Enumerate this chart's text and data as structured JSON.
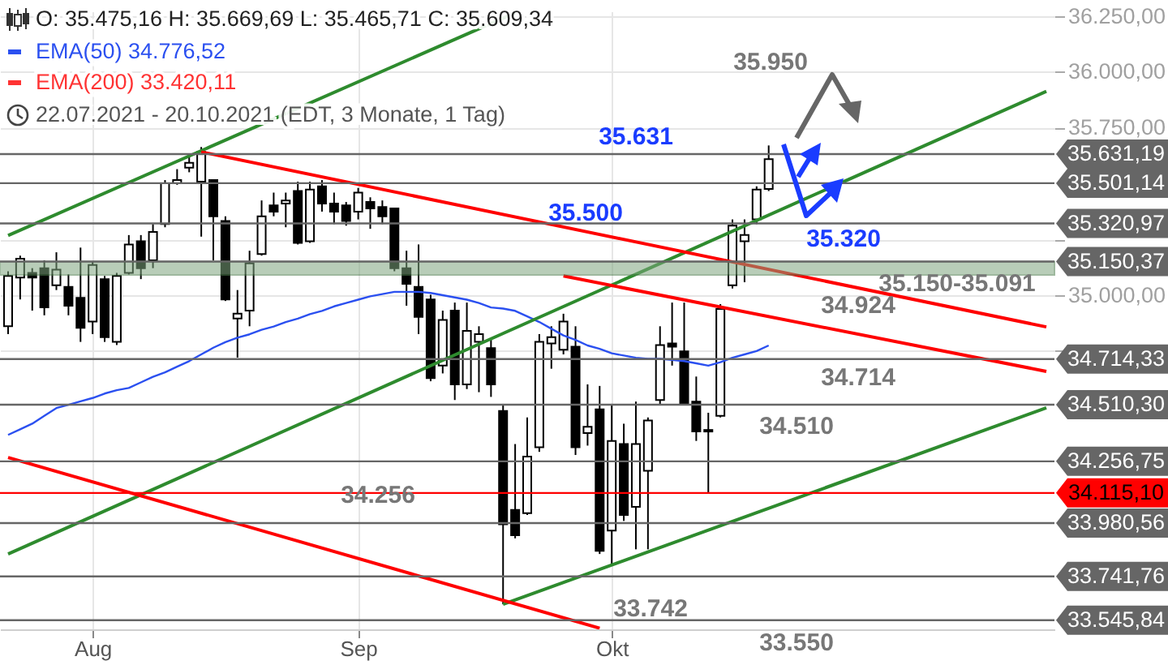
{
  "chart_data": {
    "type": "candlestick",
    "categories": [
      null,
      null,
      null,
      null,
      null,
      null,
      null,
      "Aug",
      null,
      null,
      null,
      null,
      null,
      null,
      null,
      null,
      null,
      null,
      null,
      null,
      null,
      null,
      null,
      null,
      null,
      null,
      null,
      null,
      null,
      "Sep",
      null,
      null,
      null,
      null,
      null,
      null,
      null,
      null,
      null,
      null,
      null,
      null,
      null,
      null,
      null,
      null,
      null,
      null,
      null,
      null,
      "Okt",
      null,
      null,
      null,
      null,
      null,
      null,
      null,
      null,
      null,
      null,
      null,
      null,
      null,
      null,
      null,
      null,
      null,
      null,
      null,
      null,
      null,
      null,
      null,
      null,
      null,
      null,
      null,
      null,
      null,
      null,
      null,
      null,
      null,
      null,
      null,
      null
    ],
    "ohlc": [
      [
        34861,
        35107,
        34826,
        35086
      ],
      [
        35079,
        35177,
        34981,
        35163
      ],
      [
        35100,
        35121,
        34931,
        35079
      ],
      [
        35121,
        35156,
        34910,
        34946
      ],
      [
        35044,
        35192,
        35023,
        35114
      ],
      [
        35037,
        35093,
        34910,
        34953
      ],
      [
        34988,
        35213,
        34791,
        34854
      ],
      [
        34882,
        35149,
        34826,
        35135
      ],
      [
        35072,
        35086,
        34791,
        34812
      ],
      [
        34791,
        35100,
        34777,
        35086
      ],
      [
        35100,
        35269,
        35093,
        35227
      ],
      [
        35241,
        35269,
        35072,
        35121
      ],
      [
        35156,
        35318,
        35121,
        35283
      ],
      [
        35318,
        35515,
        35304,
        35501
      ],
      [
        35501,
        35564,
        35494,
        35515
      ],
      [
        35571,
        35634,
        35550,
        35592
      ],
      [
        35508,
        35663,
        35262,
        35641
      ],
      [
        35515,
        35515,
        35156,
        35353
      ],
      [
        35332,
        35353,
        34974,
        34981
      ],
      [
        34896,
        35023,
        34721,
        34917
      ],
      [
        34931,
        35199,
        34861,
        35142
      ],
      [
        35184,
        35424,
        35177,
        35353
      ],
      [
        35402,
        35459,
        35353,
        35374
      ],
      [
        35410,
        35459,
        35304,
        35424
      ],
      [
        35466,
        35508,
        35227,
        35234
      ],
      [
        35241,
        35508,
        35234,
        35473
      ],
      [
        35487,
        35515,
        35374,
        35410
      ],
      [
        35410,
        35459,
        35318,
        35374
      ],
      [
        35402,
        35417,
        35311,
        35332
      ],
      [
        35374,
        35480,
        35339,
        35459
      ],
      [
        35417,
        35438,
        35297,
        35388
      ],
      [
        35395,
        35424,
        35318,
        35353
      ],
      [
        35388,
        35388,
        35107,
        35121
      ],
      [
        35121,
        35199,
        34953,
        35051
      ],
      [
        35037,
        35227,
        34826,
        34903
      ],
      [
        34981,
        35002,
        34615,
        34629
      ],
      [
        34685,
        34931,
        34650,
        34889
      ],
      [
        34931,
        34967,
        34531,
        34601
      ],
      [
        34601,
        34967,
        34580,
        34840
      ],
      [
        34791,
        34861,
        34566,
        34826
      ],
      [
        34763,
        34805,
        34545,
        34601
      ],
      [
        34482,
        34510,
        33617,
        33975
      ],
      [
        34039,
        34334,
        33912,
        33926
      ],
      [
        34025,
        34453,
        34017,
        34278
      ],
      [
        34320,
        34826,
        34299,
        34791
      ],
      [
        34784,
        34861,
        34671,
        34812
      ],
      [
        34756,
        34917,
        34735,
        34882
      ],
      [
        34770,
        34861,
        34285,
        34320
      ],
      [
        34383,
        34601,
        34327,
        34411
      ],
      [
        34489,
        34594,
        33842,
        33856
      ],
      [
        33947,
        34510,
        33793,
        34348
      ],
      [
        34334,
        34425,
        33990,
        34017
      ],
      [
        34053,
        34524,
        33863,
        34334
      ],
      [
        34214,
        34453,
        33863,
        34439
      ],
      [
        34531,
        34861,
        34510,
        34777
      ],
      [
        34784,
        34967,
        34685,
        34770
      ],
      [
        34749,
        34967,
        34510,
        34517
      ],
      [
        34524,
        34636,
        34348,
        34390
      ],
      [
        34397,
        34474,
        34115,
        34390
      ],
      [
        34460,
        34960,
        34453,
        34938
      ],
      [
        35044,
        35339,
        35030,
        35311
      ],
      [
        35241,
        35339,
        35058,
        35269
      ],
      [
        35339,
        35487,
        35318,
        35473
      ],
      [
        35475,
        35670,
        35466,
        35609
      ],
      null,
      null,
      null,
      null,
      null,
      null,
      null,
      null,
      null,
      null,
      null,
      null,
      null,
      null,
      null,
      null,
      null,
      null,
      null,
      null,
      null,
      null,
      null
    ],
    "series": [
      {
        "type": "line",
        "color": "#2b50f0",
        "values": [
          34375,
          34400,
          34425,
          34460,
          34495,
          34510,
          34525,
          34540,
          34560,
          34575,
          34585,
          34610,
          34635,
          34655,
          34680,
          34705,
          34735,
          34765,
          34790,
          34810,
          34825,
          34845,
          34860,
          34880,
          34895,
          34915,
          34930,
          34950,
          34965,
          34980,
          34995,
          35005,
          35015,
          35015,
          35015,
          35010,
          35000,
          34990,
          34980,
          34965,
          34945,
          34940,
          34930,
          34905,
          34880,
          34850,
          34820,
          34800,
          34775,
          34760,
          34740,
          34730,
          34720,
          34715,
          34715,
          34710,
          34705,
          34695,
          34685,
          34700,
          34720,
          34735,
          34750,
          34775,
          null,
          null,
          null,
          null,
          null,
          null,
          null,
          null,
          null,
          null,
          null,
          null,
          null,
          null,
          null,
          null,
          null,
          null,
          null,
          null,
          null,
          null,
          null
        ]
      },
      {
        "type": "line",
        "color": "#2e8b2e",
        "values": [
          35267,
          null,
          null,
          null,
          null,
          null,
          null,
          null,
          null,
          null,
          null,
          null,
          null,
          null,
          null,
          null,
          null,
          null,
          null,
          null,
          null,
          null,
          null,
          null,
          null,
          null,
          null,
          null,
          null,
          null,
          null,
          null,
          null,
          null,
          null,
          null,
          null,
          null,
          null,
          null,
          null,
          null,
          36263,
          null,
          null,
          null,
          null,
          null,
          null,
          null,
          null,
          null,
          null,
          null,
          null,
          null,
          null,
          null,
          null,
          null,
          null,
          null,
          null,
          null,
          null,
          null,
          null,
          null,
          null,
          null,
          null,
          null,
          null,
          null,
          null,
          null,
          null,
          null,
          null,
          null,
          null,
          null,
          null,
          null,
          null,
          null,
          null
        ]
      },
      {
        "type": "line",
        "color": "#2e8b2e",
        "values": [
          33842,
          null,
          null,
          null,
          null,
          null,
          null,
          null,
          null,
          null,
          null,
          null,
          null,
          null,
          null,
          null,
          null,
          null,
          null,
          null,
          null,
          null,
          null,
          null,
          null,
          null,
          null,
          null,
          null,
          null,
          null,
          null,
          null,
          null,
          null,
          null,
          null,
          null,
          null,
          null,
          null,
          null,
          null,
          null,
          null,
          null,
          null,
          null,
          null,
          null,
          null,
          null,
          null,
          null,
          null,
          null,
          null,
          null,
          null,
          null,
          null,
          null,
          null,
          null,
          null,
          null,
          null,
          null,
          null,
          null,
          null,
          null,
          null,
          null,
          null,
          null,
          null,
          null,
          null,
          null,
          null,
          null,
          null,
          null,
          null,
          null,
          35912
        ]
      },
      {
        "type": "line",
        "color": "#2e8b2e",
        "values": [
          null,
          null,
          null,
          null,
          null,
          null,
          null,
          null,
          null,
          null,
          null,
          null,
          null,
          null,
          null,
          null,
          null,
          null,
          null,
          null,
          null,
          null,
          null,
          null,
          null,
          null,
          null,
          null,
          null,
          null,
          null,
          null,
          null,
          null,
          null,
          null,
          null,
          null,
          null,
          null,
          null,
          33617,
          null,
          null,
          null,
          null,
          null,
          null,
          null,
          null,
          null,
          null,
          null,
          null,
          null,
          null,
          null,
          null,
          null,
          null,
          null,
          null,
          null,
          null,
          null,
          null,
          null,
          null,
          null,
          null,
          null,
          null,
          null,
          null,
          null,
          null,
          null,
          null,
          null,
          null,
          null,
          null,
          null,
          null,
          null,
          null,
          34496
        ]
      },
      {
        "type": "line",
        "color": "#ff0000",
        "values": [
          null,
          null,
          null,
          null,
          null,
          null,
          null,
          null,
          null,
          null,
          null,
          null,
          null,
          null,
          null,
          null,
          35641,
          null,
          null,
          null,
          null,
          null,
          null,
          null,
          null,
          null,
          null,
          null,
          null,
          null,
          null,
          null,
          null,
          null,
          null,
          null,
          null,
          null,
          null,
          null,
          null,
          null,
          null,
          null,
          null,
          null,
          null,
          null,
          null,
          null,
          null,
          null,
          null,
          null,
          null,
          null,
          null,
          null,
          null,
          null,
          null,
          null,
          null,
          null,
          null,
          null,
          null,
          null,
          null,
          null,
          null,
          null,
          null,
          null,
          null,
          null,
          null,
          null,
          null,
          null,
          null,
          null,
          null,
          null,
          null,
          null,
          34858
        ]
      },
      {
        "type": "line",
        "color": "#ff0000",
        "values": [
          null,
          null,
          null,
          null,
          null,
          null,
          null,
          null,
          null,
          null,
          null,
          null,
          null,
          null,
          null,
          null,
          null,
          null,
          null,
          null,
          null,
          null,
          null,
          null,
          null,
          null,
          null,
          null,
          null,
          null,
          null,
          null,
          null,
          null,
          null,
          null,
          null,
          null,
          null,
          null,
          null,
          null,
          null,
          null,
          null,
          null,
          35086,
          null,
          null,
          null,
          null,
          null,
          null,
          null,
          null,
          null,
          null,
          null,
          null,
          null,
          null,
          null,
          null,
          null,
          null,
          null,
          null,
          null,
          null,
          null,
          null,
          null,
          null,
          null,
          null,
          null,
          null,
          null,
          null,
          null,
          null,
          null,
          null,
          null,
          null,
          null,
          34659
        ]
      },
      {
        "type": "line",
        "color": "#ff0000",
        "values": [
          34274,
          null,
          null,
          null,
          null,
          null,
          null,
          null,
          null,
          null,
          null,
          null,
          null,
          null,
          null,
          null,
          null,
          null,
          null,
          null,
          null,
          null,
          null,
          null,
          null,
          null,
          null,
          null,
          null,
          null,
          null,
          null,
          null,
          null,
          null,
          null,
          null,
          null,
          null,
          null,
          null,
          null,
          null,
          null,
          null,
          null,
          null,
          null,
          null,
          33510,
          null,
          null,
          null,
          null,
          null,
          null,
          null,
          null,
          null,
          null,
          null,
          null,
          null,
          null,
          null,
          null,
          null,
          null,
          null,
          null,
          null,
          null,
          null,
          null,
          null,
          null,
          null,
          null,
          null,
          null,
          null,
          null,
          null,
          null,
          null,
          null,
          null
        ]
      }
    ],
    "ylim": [
      33505,
      36270
    ],
    "yticks": [
      {
        "value": 34750,
        "label": null
      },
      {
        "value": 35000,
        "label": "35.000,00"
      },
      {
        "value": 35250,
        "label": null
      },
      {
        "value": 35750,
        "label": "35.750,00"
      },
      {
        "value": 36000,
        "label": "36.000,00"
      },
      {
        "value": 36250,
        "label": "36.250,00"
      }
    ],
    "grid": true,
    "bands": [
      {
        "axis": "y",
        "from": 35091,
        "to": 35150,
        "color": "#7fa67f"
      }
    ],
    "ref_lines": [
      {
        "axis": "y",
        "value": 35631.19,
        "label": "35.631,19",
        "color": "#666666"
      },
      {
        "axis": "y",
        "value": 35501.14,
        "label": "35.501,14",
        "color": "#666666"
      },
      {
        "axis": "y",
        "value": 35320.97,
        "label": "35.320,97",
        "color": "#666666"
      },
      {
        "axis": "y",
        "value": 35150.37,
        "label": "35.150,37",
        "color": "#666666"
      },
      {
        "axis": "y",
        "value": 34714.33,
        "label": "34.714,33",
        "color": "#666666"
      },
      {
        "axis": "y",
        "value": 34510.3,
        "label": "34.510,30",
        "color": "#666666"
      },
      {
        "axis": "y",
        "value": 34256.75,
        "label": "34.256,75",
        "color": "#666666"
      },
      {
        "axis": "y",
        "value": 34115.1,
        "label": "34.115,10",
        "color": "#ff0000"
      },
      {
        "axis": "y",
        "value": 33980.56,
        "label": "33.980,56",
        "color": "#666666"
      },
      {
        "axis": "y",
        "value": 33741.76,
        "label": "33.741,76",
        "color": "#666666"
      },
      {
        "axis": "y",
        "value": 33545.84,
        "label": "33.545,84",
        "color": "#666666"
      }
    ],
    "annotations": [
      "O: 35.475,16  H: 35.669,69  L: 35.465,71  C: 35.609,34",
      "EMA(50)  34.776,52",
      "EMA(200)  33.420,11",
      "22.07.2021 - 20.10.2021   (EDT, 3 Monate, 1 Tag)",
      "35.950",
      {
        "text": "35.631",
        "y": 35631
      },
      "35.500",
      {
        "text": "35.320",
        "y": 35320
      },
      {
        "text": "35.150-35.091",
        "y": 35091
      },
      "34.924",
      {
        "text": "34.714",
        "y": 34714
      },
      {
        "text": "34.510",
        "y": 34510
      },
      "34.256",
      "33.742",
      {
        "text": "33.550",
        "y": 33550
      }
    ]
  }
}
